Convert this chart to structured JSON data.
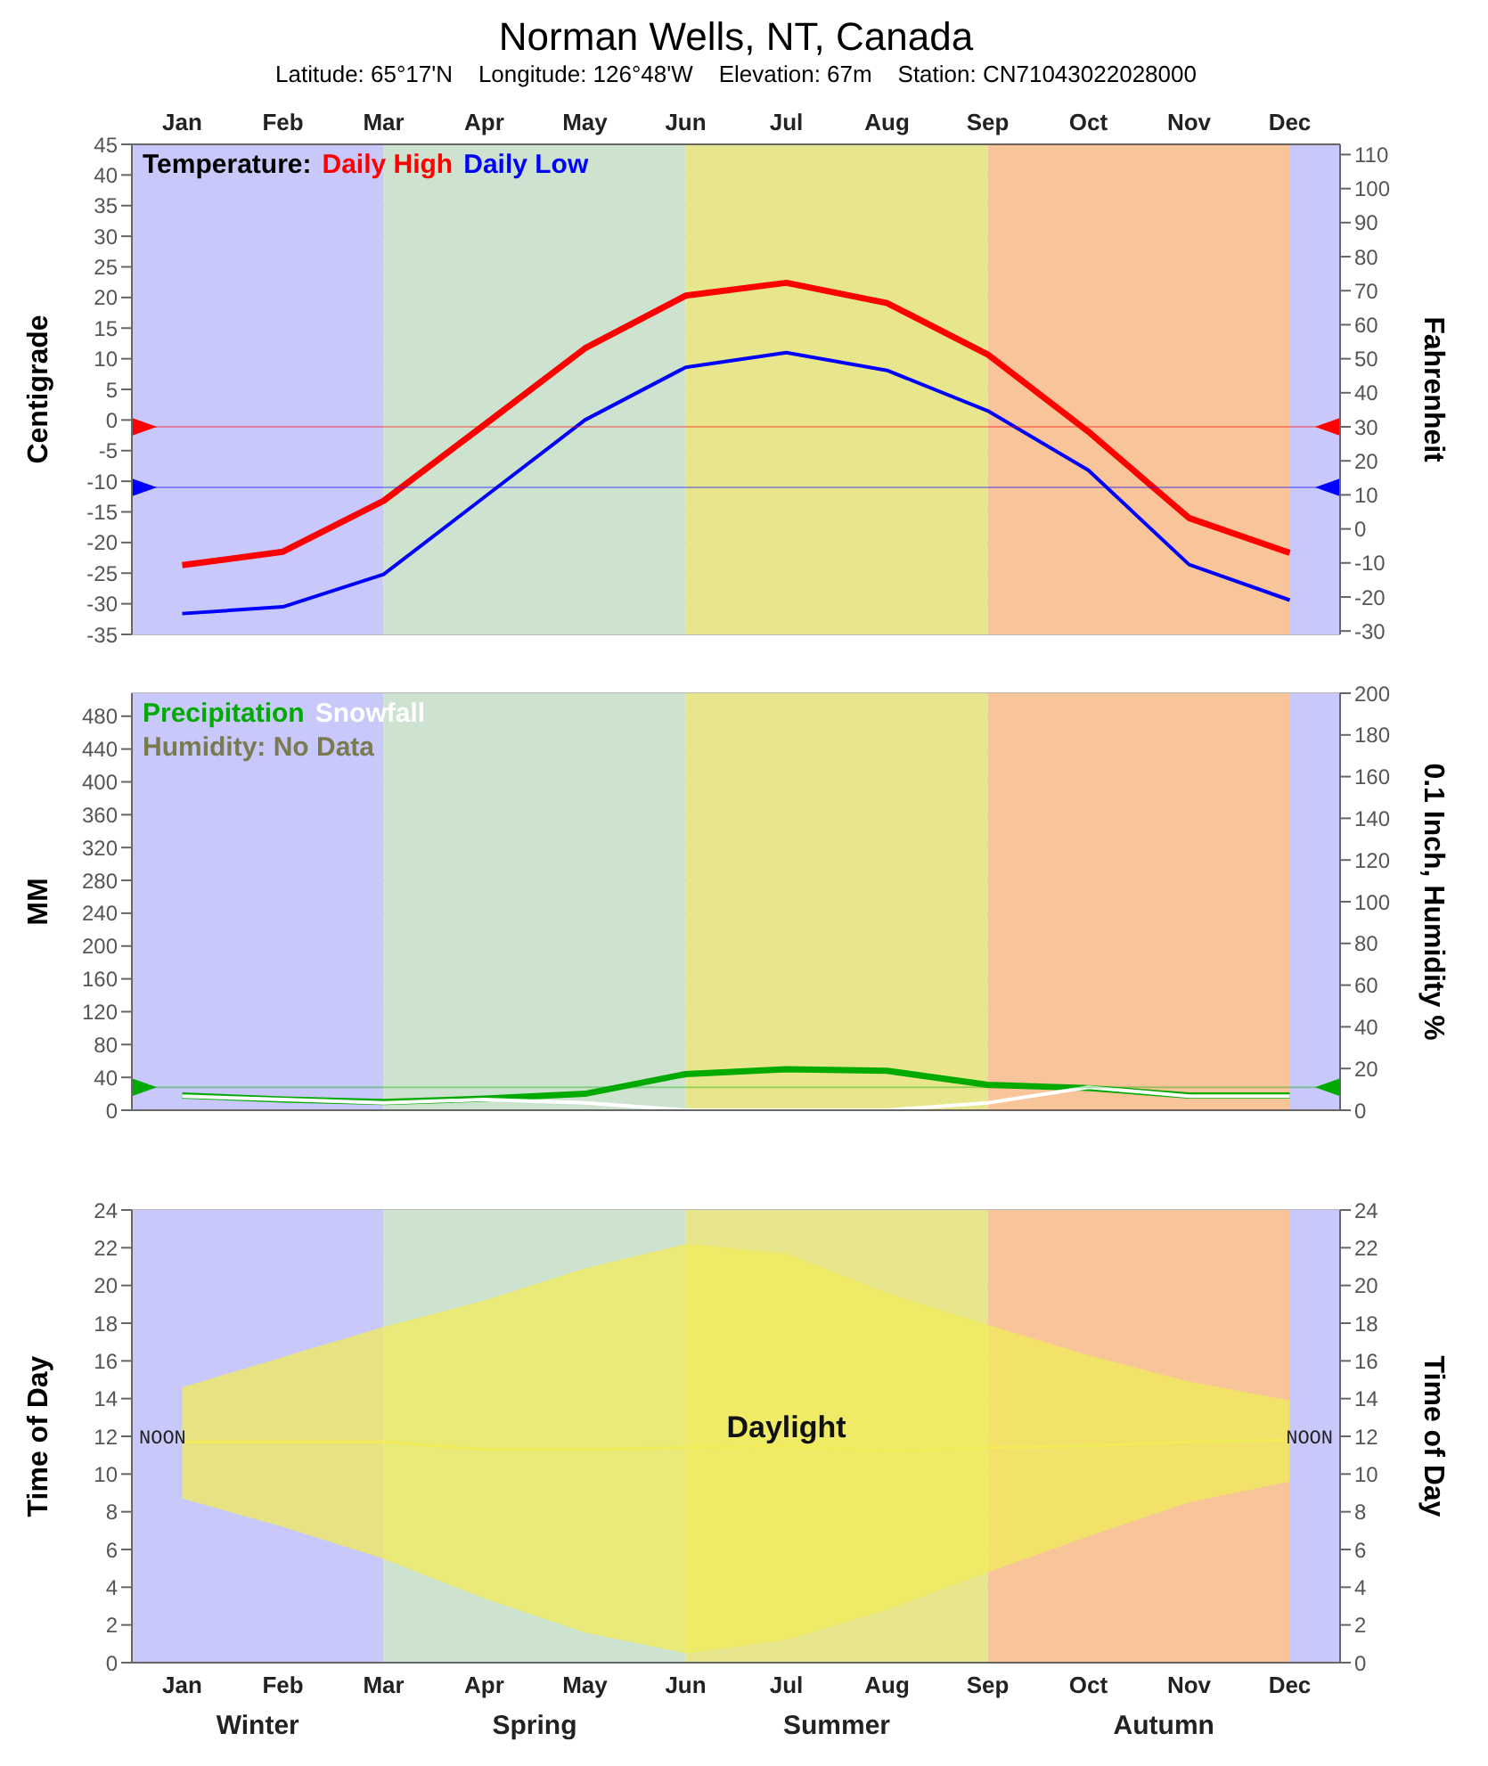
{
  "chart_data": [
    {
      "type": "line",
      "title": "Norman Wells, NT,  Canada",
      "subtitle": "Latitude: 65°17'N    Longitude: 126°48'W    Elevation: 67m    Station: CN71043022028000",
      "ylabel": "Centigrade",
      "y2label": "Fahrenheit",
      "legend_title": "Temperature:",
      "categories": [
        "Jan",
        "Feb",
        "Mar",
        "Apr",
        "May",
        "Jun",
        "Jul",
        "Aug",
        "Sep",
        "Oct",
        "Nov",
        "Dec"
      ],
      "series": [
        {
          "name": "Daily High",
          "color": "#ff0000",
          "values": [
            -23.7,
            -21.5,
            -13.2,
            -0.8,
            11.7,
            20.3,
            22.4,
            19.1,
            10.7,
            -1.9,
            -16,
            -21.7
          ]
        },
        {
          "name": "Daily Low",
          "color": "#0000ff",
          "values": [
            -31.6,
            -30.5,
            -25.2,
            -12.6,
            0,
            8.6,
            11,
            8.1,
            1.5,
            -8.2,
            -23.6,
            -29.4
          ]
        }
      ],
      "ylim": [
        -35,
        45
      ],
      "yticks": [
        -35,
        -30,
        -25,
        -20,
        -15,
        -10,
        -5,
        0,
        5,
        10,
        15,
        20,
        25,
        30,
        35,
        40,
        45
      ],
      "y2lim": [
        -31,
        113
      ],
      "y2ticks": [
        -30,
        -20,
        -10,
        0,
        10,
        20,
        30,
        40,
        50,
        60,
        70,
        80,
        90,
        100,
        110
      ],
      "ref_lines": [
        {
          "axis": "y",
          "value": -1.1,
          "color": "#ff0000"
        },
        {
          "axis": "y",
          "value": -11,
          "color": "#0000ff"
        }
      ],
      "bands": [
        {
          "axis": "x",
          "from": "Jan",
          "to": "Mar",
          "color": "#c8c8fa"
        },
        {
          "axis": "x",
          "from": "Mar",
          "to": "Jun",
          "color": "#cde3cf"
        },
        {
          "axis": "x",
          "from": "Jun",
          "to": "Sep",
          "color": "#e8e68c"
        },
        {
          "axis": "x",
          "from": "Sep",
          "to": "Dec",
          "color": "#f8c49a"
        },
        {
          "axis": "x",
          "from": "Dec",
          "to": "Dec",
          "color": "#c8c8fa"
        }
      ],
      "grid": "y",
      "legend": "top left"
    },
    {
      "type": "line",
      "ylabel": "MM",
      "y2label": "0.1 Inch, Humidity %",
      "annotations": [
        "Humidity: No Data"
      ],
      "categories": [
        "Jan",
        "Feb",
        "Mar",
        "Apr",
        "May",
        "Jun",
        "Jul",
        "Aug",
        "Sep",
        "Oct",
        "Nov",
        "Dec"
      ],
      "series": [
        {
          "name": "Precipitation",
          "color": "#00aa00",
          "values": [
            18,
            13,
            10,
            14,
            20,
            44,
            50,
            48,
            31,
            27,
            18,
            18
          ]
        },
        {
          "name": "Snowfall",
          "color": "#ffffff",
          "values": [
            17,
            13,
            9,
            13,
            9,
            0,
            0,
            0,
            9,
            28,
            17,
            17
          ]
        }
      ],
      "ylim": [
        0,
        508
      ],
      "yticks": [
        0,
        40,
        80,
        120,
        160,
        200,
        240,
        280,
        320,
        360,
        400,
        440,
        480
      ],
      "y2lim": [
        0,
        200
      ],
      "y2ticks": [
        0,
        20,
        40,
        60,
        80,
        100,
        120,
        140,
        160,
        180,
        200
      ],
      "ref_lines": [
        {
          "axis": "y",
          "value": 28,
          "color": "#00aa00"
        }
      ],
      "bands": [
        {
          "axis": "x",
          "from": "Jan",
          "to": "Mar",
          "color": "#c8c8fa"
        },
        {
          "axis": "x",
          "from": "Mar",
          "to": "Jun",
          "color": "#cde3cf"
        },
        {
          "axis": "x",
          "from": "Jun",
          "to": "Sep",
          "color": "#e8e68c"
        },
        {
          "axis": "x",
          "from": "Sep",
          "to": "Dec",
          "color": "#f8c49a"
        },
        {
          "axis": "x",
          "from": "Dec",
          "to": "Dec",
          "color": "#c8c8fa"
        }
      ],
      "grid": "y",
      "legend": "top left",
      "tick_labels": "y"
    },
    {
      "type": "line",
      "ylabel": "Time of Day",
      "y2label": "Time of Day",
      "annotations": [
        "NOON",
        "NOON"
      ],
      "categories": [
        "Jan",
        "Feb",
        "Mar",
        "Apr",
        "May",
        "Jun",
        "Jul",
        "Aug",
        "Sep",
        "Oct",
        "Nov",
        "Dec"
      ],
      "series": [
        {
          "name": "Daylight",
          "color": "#f2ec5a",
          "values": [
            11.7,
            11.7,
            11.7,
            11.3,
            11.3,
            11.4,
            11.5,
            11.2,
            11.4,
            11.5,
            11.7,
            11.8
          ],
          "lower": [
            8.7,
            7.2,
            5.5,
            3.4,
            1.6,
            0.5,
            1.2,
            2.8,
            4.8,
            6.7,
            8.5,
            9.6
          ],
          "upper": [
            14.6,
            16.2,
            17.8,
            19.2,
            20.9,
            22.2,
            21.7,
            19.6,
            17.9,
            16.3,
            14.9,
            13.9
          ]
        }
      ],
      "ylim": [
        0,
        24
      ],
      "yticks": [
        0,
        2,
        4,
        6,
        8,
        10,
        12,
        14,
        16,
        18,
        20,
        22,
        24
      ],
      "y2lim": [
        0,
        24
      ],
      "y2ticks": [
        0,
        2,
        4,
        6,
        8,
        10,
        12,
        14,
        16,
        18,
        20,
        22,
        24
      ],
      "bands": [
        {
          "axis": "x",
          "from": "Jan",
          "to": "Mar",
          "color": "#c8c8fa",
          "label": "Winter"
        },
        {
          "axis": "x",
          "from": "Mar",
          "to": "Jun",
          "color": "#cde3cf",
          "label": "Spring"
        },
        {
          "axis": "x",
          "from": "Jun",
          "to": "Sep",
          "color": "#e8e68c",
          "label": "Summer"
        },
        {
          "axis": "x",
          "from": "Sep",
          "to": "Dec",
          "color": "#f8c49a",
          "label": "Autumn"
        },
        {
          "axis": "x",
          "from": "Dec",
          "to": "Dec",
          "color": "#c8c8fa"
        }
      ],
      "grid": "y",
      "legend": false
    }
  ]
}
